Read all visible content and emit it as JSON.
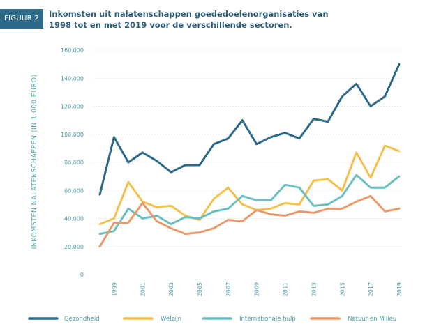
{
  "figure": {
    "badge": "FIGUUR 2",
    "title": "Inkomsten uit nalatenschappen goededoelenorganisaties van 1998 tot en met 2019 voor de verschillende sectoren."
  },
  "chart_data": {
    "type": "line",
    "title": "Inkomsten uit nalatenschappen goededoelenorganisaties van 1998 tot en met 2019 voor de verschillende sectoren.",
    "xlabel": "",
    "ylabel": "INKOMSTEN NALATENSCHAPPEN (IN 1.000 EURO)",
    "x": [
      1998,
      1999,
      2000,
      2001,
      2002,
      2003,
      2004,
      2005,
      2006,
      2007,
      2008,
      2009,
      2010,
      2011,
      2012,
      2013,
      2014,
      2015,
      2016,
      2017,
      2018,
      2019
    ],
    "x_tick_labels": [
      "1999",
      "2001",
      "2003",
      "2005",
      "2007",
      "2009",
      "2011",
      "2013",
      "2015",
      "2017",
      "2019"
    ],
    "x_tick_values": [
      1999,
      2001,
      2003,
      2005,
      2007,
      2009,
      2011,
      2013,
      2015,
      2017,
      2019
    ],
    "y_tick_labels": [
      "0",
      "20.000",
      "40.000",
      "60.000",
      "80.000",
      "100.000",
      "120.000",
      "140.000",
      "160.000"
    ],
    "ylim": [
      0,
      160000
    ],
    "grid": true,
    "legend_position": "bottom",
    "series": [
      {
        "name": "Gezondheid",
        "color": "#2d6a8a",
        "values": [
          57000,
          98000,
          80000,
          87000,
          81000,
          73000,
          78000,
          78000,
          93000,
          97000,
          110000,
          93000,
          98000,
          101000,
          97000,
          111000,
          109000,
          127000,
          136000,
          120000,
          127000,
          150000
        ]
      },
      {
        "name": "Welzijn",
        "color": "#f2c04c",
        "values": [
          36000,
          40000,
          66000,
          52000,
          48000,
          49000,
          42000,
          39000,
          54000,
          62000,
          50000,
          46000,
          47000,
          51000,
          50000,
          67000,
          68000,
          60000,
          87000,
          69000,
          92000,
          88000
        ]
      },
      {
        "name": "Internationale hulp",
        "color": "#6cbfbf",
        "values": [
          29000,
          31000,
          47000,
          40000,
          42000,
          36000,
          41000,
          40000,
          45000,
          47000,
          56000,
          53000,
          53000,
          64000,
          62000,
          49000,
          50000,
          56000,
          71000,
          62000,
          62000,
          70000
        ]
      },
      {
        "name": "Natuur en Milieu",
        "color": "#e99a6a",
        "values": [
          20000,
          37000,
          37000,
          51000,
          38000,
          33000,
          29000,
          30000,
          33000,
          39000,
          38000,
          46000,
          43000,
          42000,
          45000,
          44000,
          47000,
          47000,
          52000,
          56000,
          45000,
          47000
        ]
      }
    ]
  }
}
